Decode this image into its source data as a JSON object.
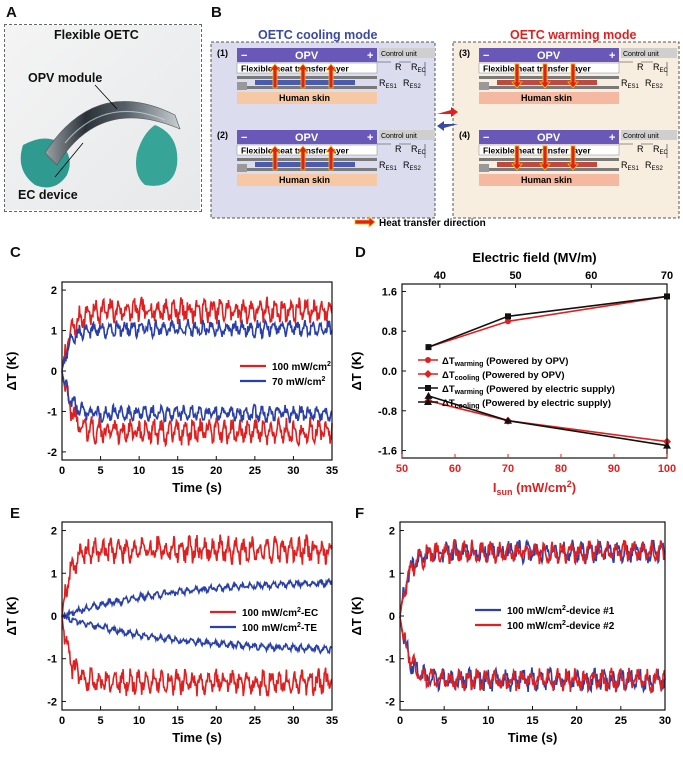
{
  "panels": {
    "A": "A",
    "B": "B",
    "C": "C",
    "D": "D",
    "E": "E",
    "F": "F"
  },
  "panelA": {
    "title": "Flexible OETC",
    "label_opv": "OPV module",
    "label_ec": "EC device"
  },
  "panelB": {
    "cooling_mode": "OETC cooling mode",
    "warming_mode": "OETC warming mode",
    "opv": "OPV",
    "minus": "−",
    "plus": "+",
    "heat_layer": "Flexible heat transfer layer",
    "skin": "Human skin",
    "control_unit": "Control unit",
    "r": "R",
    "r_ec": "R",
    "r_ec_sub": "EC",
    "r_es1": "R",
    "r_es1_sub": "ES1",
    "r_es2": "R",
    "r_es2_sub": "ES2",
    "sub_labels": [
      "(1)",
      "(2)",
      "(3)",
      "(4)"
    ],
    "legend": "Heat transfer direction",
    "colors": {
      "cooling": "#3a4aa0",
      "warming": "#e02020",
      "opv": "#6a58b8",
      "skin": "#f6c9a4"
    }
  },
  "panelC": {
    "ylabel": "ΔT (K)",
    "xlabel": "Time (s)",
    "legend": [
      "100 mW/cm",
      "70 mW/cm"
    ],
    "legend_sup": "2"
  },
  "panelD": {
    "ylabel": "ΔT (K)",
    "xlabel": "I",
    "xlabel_sub": "sun",
    "xlabel_rest": " (mW/cm",
    "xlabel_sup": "2",
    "xlabel_end": ")",
    "top_label": "Electric field (MV/m)",
    "legend": [
      {
        "pre": "ΔT",
        "sub": "warming",
        "post": " (Powered by OPV)"
      },
      {
        "pre": "ΔT",
        "sub": "cooling",
        "post": " (Powered by OPV)"
      },
      {
        "pre": "ΔT",
        "sub": "warming",
        "post": " (Powered by electric supply)"
      },
      {
        "pre": "ΔT",
        "sub": "cooling",
        "post": " (Powered by electric supply)"
      }
    ]
  },
  "panelE": {
    "ylabel": "ΔT (K)",
    "xlabel": "Time (s)",
    "legend": [
      "100 mW/cm",
      "-EC",
      "100 mW/cm",
      "-TE"
    ],
    "legend_sup": "2"
  },
  "panelF": {
    "ylabel": "ΔT (K)",
    "xlabel": "Time (s)",
    "legend": [
      "100 mW/cm",
      "-device #1",
      "100 mW/cm",
      "-device #2"
    ],
    "legend_sup": "2"
  },
  "chart_data": [
    {
      "type": "line",
      "panel": "C",
      "x_range": [
        0,
        35
      ],
      "ylim": [
        -2.2,
        2.2
      ],
      "xticks": [
        "0",
        "5",
        "10",
        "15",
        "20",
        "25",
        "30",
        "35"
      ],
      "yticks": [
        "-2",
        "-1",
        "0",
        "1",
        "2"
      ],
      "series": [
        {
          "name": "100 mW/cm2",
          "color": "#e02020",
          "plateau": 1.5,
          "amp": 0.3,
          "tau": 1.2
        },
        {
          "name": "70 mW/cm2",
          "color": "#2a40a8",
          "plateau": 1.05,
          "amp": 0.2,
          "tau": 1.0
        }
      ]
    },
    {
      "type": "line",
      "panel": "D",
      "x_range": [
        50,
        100
      ],
      "ylim": [
        -1.75,
        1.75
      ],
      "xticks": [
        "50",
        "60",
        "70",
        "80",
        "90",
        "100"
      ],
      "yticks": [
        "-1.6",
        "-0.8",
        "0.0",
        "0.8",
        "1.6"
      ],
      "top_range": [
        35,
        70
      ],
      "top_ticks": [
        "40",
        "50",
        "60",
        "70"
      ],
      "series": [
        {
          "name": "ΔTwarming (Powered by OPV)",
          "color": "#e02020",
          "marker": "circle",
          "x": [
            55,
            70,
            100
          ],
          "y": [
            0.48,
            1.0,
            1.5
          ]
        },
        {
          "name": "ΔTcooling (Powered by OPV)",
          "color": "#e02020",
          "marker": "diamond",
          "x": [
            55,
            70,
            100
          ],
          "y": [
            -0.6,
            -1.0,
            -1.42
          ]
        },
        {
          "name": "ΔTwarming (Powered by electric supply)",
          "color": "#111111",
          "marker": "square",
          "x": [
            55,
            70,
            100
          ],
          "y": [
            0.48,
            1.1,
            1.5
          ]
        },
        {
          "name": "ΔTcooling (Powered by electric supply)",
          "color": "#111111",
          "marker": "triangle",
          "x": [
            55,
            70,
            100
          ],
          "y": [
            -0.5,
            -1.0,
            -1.5
          ]
        }
      ]
    },
    {
      "type": "line",
      "panel": "E",
      "x_range": [
        0,
        35
      ],
      "ylim": [
        -2.2,
        2.2
      ],
      "xticks": [
        "0",
        "5",
        "10",
        "15",
        "20",
        "25",
        "30",
        "35"
      ],
      "yticks": [
        "-2",
        "-1",
        "0",
        "1",
        "2"
      ],
      "series": [
        {
          "name": "100 mW/cm2-EC",
          "color": "#e02020",
          "plateau": 1.55,
          "amp": 0.3,
          "tau": 1.0
        },
        {
          "name": "100 mW/cm2-TE",
          "color": "#2a40a8",
          "plateau": 0.85,
          "amp": 0.08,
          "tau": 14
        }
      ]
    },
    {
      "type": "line",
      "panel": "F",
      "x_range": [
        0,
        30
      ],
      "ylim": [
        -2.2,
        2.2
      ],
      "xticks": [
        "0",
        "5",
        "10",
        "15",
        "20",
        "25",
        "30"
      ],
      "yticks": [
        "-2",
        "-1",
        "0",
        "1",
        "2"
      ],
      "series": [
        {
          "name": "100 mW/cm2-device #1",
          "color": "#2a40a8",
          "plateau": 1.5,
          "amp": 0.25,
          "tau": 1.0
        },
        {
          "name": "100 mW/cm2-device #2",
          "color": "#e02020",
          "plateau": 1.5,
          "amp": 0.25,
          "tau": 1.0
        }
      ]
    }
  ]
}
